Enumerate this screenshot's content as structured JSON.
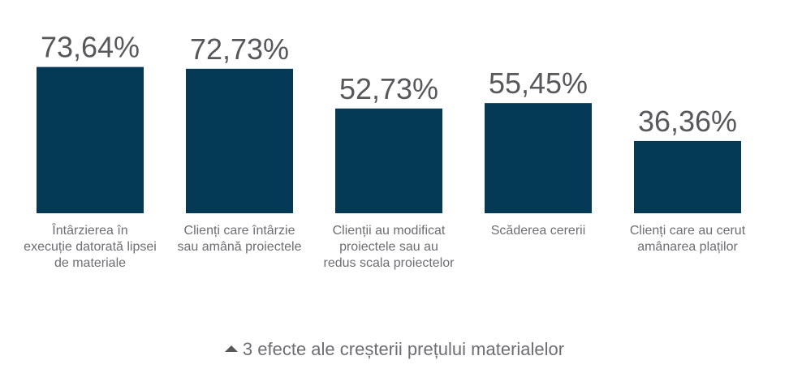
{
  "chart_data": {
    "type": "bar",
    "title": "",
    "xlabel": "",
    "ylabel": "",
    "ylim": [
      0,
      80
    ],
    "bar_color": "#043a55",
    "categories": [
      "Întârzierea în execuție datorată lipsei de materiale",
      "Clienți care întârzie sau amână proiectele",
      "Clienții au modificat proiectele sau au redus scala proiectelor",
      "Scăderea cererii",
      "Clienți care au cerut amânarea plaților"
    ],
    "category_lines": [
      [
        "Întârzierea în",
        "execuție datorată lipsei",
        "de materiale"
      ],
      [
        "Clienți care întârzie",
        "sau amână proiectele"
      ],
      [
        "Clienții au modificat",
        "proiectele sau au",
        "redus scala proiectelor"
      ],
      [
        "Scăderea cererii"
      ],
      [
        "Clienți care au cerut",
        "amânarea plaților"
      ]
    ],
    "values": [
      73.64,
      72.73,
      52.73,
      55.45,
      36.36
    ],
    "value_labels": [
      "73,64%",
      "72,73%",
      "52,73%",
      "55,45%",
      "36,36%"
    ]
  },
  "caption": {
    "icon": "triangle-up-icon",
    "text": "3 efecte ale creșterii prețului materialelor"
  }
}
